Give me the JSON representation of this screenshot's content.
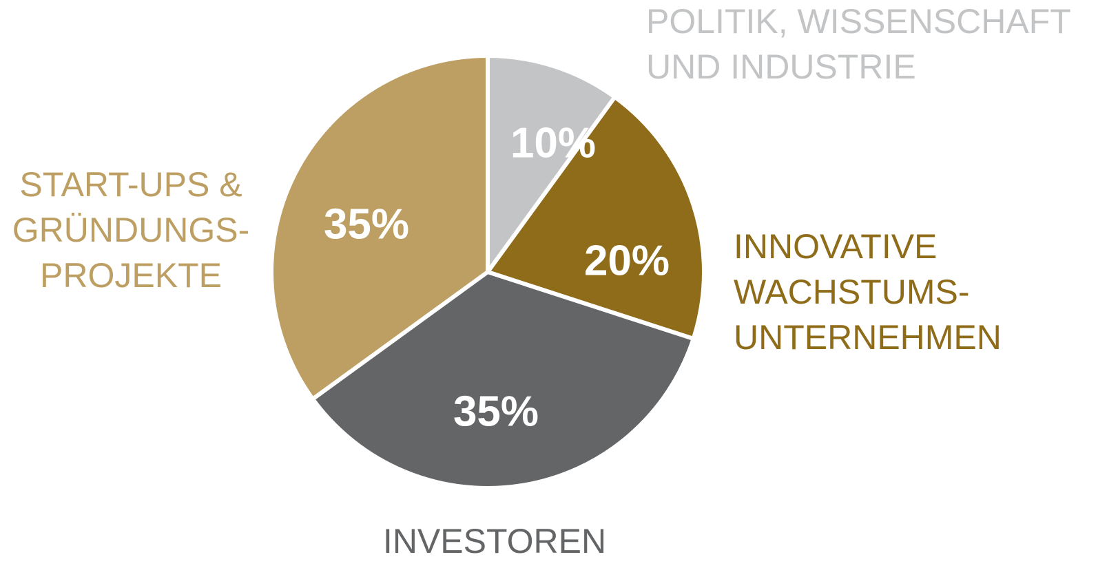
{
  "chart_data": {
    "type": "pie",
    "categories": [
      [
        "POLITIK, WISSENSCHAFT",
        "UND INDUSTRIE"
      ],
      [
        "INNOVATIVE",
        "WACHSTUMS-",
        "UNTERNEHMEN"
      ],
      [
        "INVESTOREN"
      ],
      [
        "START-UPS &",
        "GRÜNDUNGS-",
        "PROJEKTE"
      ]
    ],
    "values": [
      10,
      20,
      35,
      35
    ],
    "value_labels": [
      "10%",
      "20%",
      "35%",
      "35%"
    ],
    "colors": [
      "#c3c4c6",
      "#8f6c1a",
      "#646567",
      "#bd9f63"
    ]
  }
}
